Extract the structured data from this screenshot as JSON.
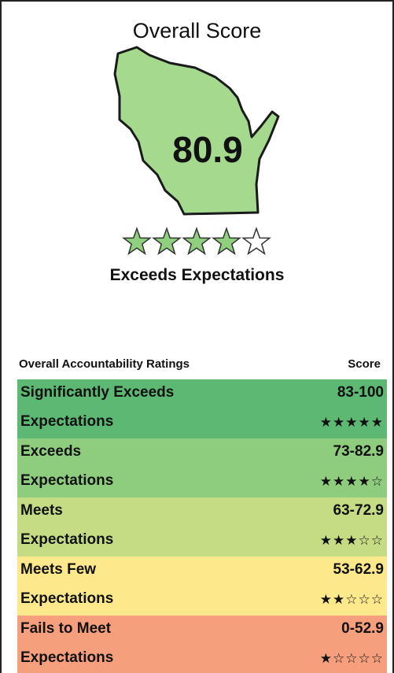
{
  "header": {
    "title": "Overall Score",
    "score": "80.9",
    "star_rating": 4,
    "star_max": 5,
    "rating": "Exceeds Expectations"
  },
  "table": {
    "columns": [
      "Overall Accountability Ratings",
      "Score"
    ],
    "rows": [
      {
        "label": [
          "Significantly Exceeds",
          "Expectations"
        ],
        "range": "83-100",
        "stars": "★★★★★",
        "color": "#5cb872"
      },
      {
        "label": [
          "Exceeds",
          "Expectations"
        ],
        "range": "73-82.9",
        "stars": "★★★★☆",
        "color": "#8fcd7e"
      },
      {
        "label": [
          "Meets",
          "Expectations"
        ],
        "range": "63-72.9",
        "stars": "★★★☆☆",
        "color": "#c5dc84"
      },
      {
        "label": [
          "Meets Few",
          "Expectations"
        ],
        "range": "53-62.9",
        "stars": "★★☆☆☆",
        "color": "#fde98b"
      },
      {
        "label": [
          "Fails to Meet",
          "Expectations"
        ],
        "range": "0-52.9",
        "stars": "★☆☆☆☆",
        "color": "#f59f7d"
      }
    ]
  }
}
